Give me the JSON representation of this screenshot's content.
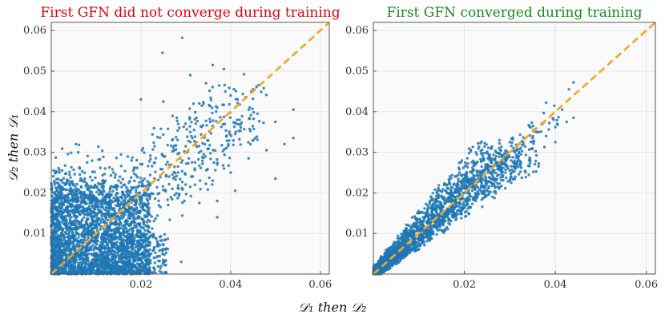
{
  "shared_xlabel": "𝒟₁ then 𝒟₂",
  "shared_ylabel": "𝒟₂ then 𝒟₁",
  "colors": {
    "points": "#1f77b4",
    "diagonal": "#f5a623",
    "panel_bg": "#fafafa",
    "grid": "#e0e0e0",
    "title_left": "#e8000b",
    "title_right": "#1a8a1a"
  },
  "chart_data": [
    {
      "type": "scatter",
      "title": "First GFN did not converge during training",
      "xlabel": "𝒟₁ then 𝒟₂",
      "ylabel": "𝒟₂ then 𝒟₁",
      "xlim": [
        0,
        0.062
      ],
      "ylim": [
        0,
        0.062
      ],
      "xticks": [
        0.02,
        0.04,
        0.06
      ],
      "xtick_labels": [
        "0.02",
        "0.04",
        "0.06"
      ],
      "yticks": [
        0.01,
        0.02,
        0.03,
        0.04,
        0.05,
        0.06
      ],
      "ytick_labels": [
        "0.01",
        "0.02",
        "0.03",
        "0.04",
        "0.05",
        "0.06"
      ],
      "grid": true,
      "reference_line": {
        "style": "dashed",
        "from": [
          0,
          0
        ],
        "to": [
          0.062,
          0.062
        ]
      },
      "points": [
        [
          0.0292,
          0.0582
        ],
        [
          0.0248,
          0.0545
        ],
        [
          0.036,
          0.0515
        ],
        [
          0.0385,
          0.0505
        ],
        [
          0.031,
          0.049
        ],
        [
          0.043,
          0.0492
        ],
        [
          0.0345,
          0.047
        ],
        [
          0.045,
          0.0455
        ],
        [
          0.02,
          0.043
        ],
        [
          0.025,
          0.0425
        ],
        [
          0.054,
          0.0405
        ],
        [
          0.04,
          0.044
        ],
        [
          0.033,
          0.042
        ],
        [
          0.037,
          0.041
        ],
        [
          0.046,
          0.0395
        ],
        [
          0.042,
          0.038
        ],
        [
          0.028,
          0.0385
        ],
        [
          0.05,
          0.0375
        ],
        [
          0.036,
          0.0365
        ],
        [
          0.031,
          0.035
        ],
        [
          0.041,
          0.0345
        ],
        [
          0.054,
          0.0335
        ],
        [
          0.052,
          0.032
        ],
        [
          0.045,
          0.033
        ],
        [
          0.027,
          0.033
        ],
        [
          0.03,
          0.0315
        ],
        [
          0.039,
          0.031
        ],
        [
          0.048,
          0.0305
        ],
        [
          0.034,
          0.0295
        ],
        [
          0.025,
          0.029
        ],
        [
          0.044,
          0.0285
        ],
        [
          0.029,
          0.0275
        ],
        [
          0.037,
          0.027
        ],
        [
          0.032,
          0.026
        ],
        [
          0.04,
          0.025
        ],
        [
          0.05,
          0.0235
        ],
        [
          0.027,
          0.0245
        ],
        [
          0.036,
          0.023
        ],
        [
          0.031,
          0.0215
        ],
        [
          0.041,
          0.0205
        ],
        [
          0.037,
          0.018
        ],
        [
          0.033,
          0.0175
        ],
        [
          0.037,
          0.014
        ],
        [
          0.029,
          0.003
        ],
        [
          0.0055,
          0.032
        ],
        [
          0.006,
          0.03
        ],
        [
          0.012,
          0.026
        ],
        [
          0.008,
          0.0275
        ],
        [
          0.015,
          0.023
        ],
        [
          0.027,
          0.021
        ],
        [
          0.021,
          0.02
        ]
      ]
    },
    {
      "type": "scatter",
      "title": "First GFN converged during training",
      "xlabel": "𝒟₁ then 𝒟₂",
      "ylabel": "",
      "xlim": [
        0,
        0.062
      ],
      "ylim": [
        0,
        0.062
      ],
      "xticks": [
        0.02,
        0.04,
        0.06
      ],
      "xtick_labels": [
        "0.02",
        "0.04",
        "0.06"
      ],
      "yticks": [
        0.01,
        0.02,
        0.03,
        0.04,
        0.05,
        0.06
      ],
      "ytick_labels": [
        "0.01",
        "0.02",
        "0.03",
        "0.04",
        "0.05",
        "0.06"
      ],
      "grid": true,
      "reference_line": {
        "style": "dashed",
        "from": [
          0,
          0
        ],
        "to": [
          0.062,
          0.062
        ]
      },
      "points": [
        [
          0.044,
          0.0472
        ],
        [
          0.043,
          0.0455
        ],
        [
          0.038,
          0.0422
        ],
        [
          0.0415,
          0.0405
        ],
        [
          0.044,
          0.0385
        ],
        [
          0.0425,
          0.0375
        ],
        [
          0.04,
          0.0362
        ],
        [
          0.037,
          0.037
        ],
        [
          0.038,
          0.034
        ],
        [
          0.036,
          0.035
        ],
        [
          0.04,
          0.0325
        ],
        [
          0.035,
          0.0335
        ],
        [
          0.033,
          0.032
        ],
        [
          0.03,
          0.0325
        ],
        [
          0.032,
          0.03
        ],
        [
          0.028,
          0.0305
        ],
        [
          0.029,
          0.0285
        ],
        [
          0.031,
          0.0275
        ],
        [
          0.027,
          0.029
        ],
        [
          0.028,
          0.0265
        ],
        [
          0.026,
          0.0275
        ],
        [
          0.03,
          0.0255
        ],
        [
          0.028,
          0.0238
        ],
        [
          0.024,
          0.0255
        ]
      ]
    }
  ]
}
